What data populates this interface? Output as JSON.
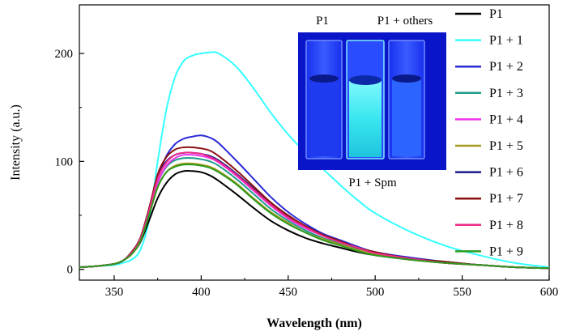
{
  "chart_data": {
    "type": "line",
    "xlabel": "Wavelength (nm)",
    "ylabel": "Intensity (a.u.)",
    "xlim": [
      330,
      600
    ],
    "ylim": [
      -10,
      245
    ],
    "xticks": [
      350,
      400,
      450,
      500,
      550,
      600
    ],
    "yticks": [
      0,
      100,
      200
    ],
    "legend_position": "right",
    "grid": false,
    "x": [
      330,
      340,
      350,
      355,
      360,
      365,
      370,
      375,
      380,
      385,
      390,
      395,
      400,
      405,
      410,
      420,
      430,
      440,
      450,
      460,
      470,
      480,
      490,
      500,
      520,
      540,
      560,
      580,
      600
    ],
    "series": [
      {
        "name": "P1",
        "color": "#000000",
        "values": [
          2,
          3,
          5,
          8,
          14,
          25,
          45,
          66,
          80,
          88,
          91,
          91,
          90,
          87,
          82,
          70,
          57,
          45,
          36,
          29,
          24,
          20,
          16,
          13,
          9,
          6,
          4,
          2,
          1
        ]
      },
      {
        "name": "P1 + 1",
        "color": "#33ffff",
        "values": [
          2,
          3,
          4,
          6,
          9,
          18,
          45,
          100,
          148,
          178,
          193,
          198,
          200,
          201,
          200,
          188,
          168,
          145,
          125,
          108,
          93,
          78,
          64,
          52,
          35,
          22,
          13,
          6,
          2
        ]
      },
      {
        "name": "P1 + 2",
        "color": "#2a2ad6",
        "values": [
          2,
          3,
          5,
          8,
          15,
          28,
          55,
          85,
          105,
          116,
          121,
          123,
          124,
          122,
          117,
          101,
          84,
          67,
          53,
          42,
          33,
          27,
          21,
          16,
          11,
          7,
          4,
          2,
          1
        ]
      },
      {
        "name": "P1 + 3",
        "color": "#1e9a8a",
        "values": [
          2,
          3,
          5,
          8,
          15,
          27,
          52,
          80,
          95,
          101,
          103,
          103,
          102,
          100,
          96,
          84,
          70,
          56,
          45,
          36,
          29,
          24,
          19,
          15,
          10,
          6,
          4,
          2,
          1
        ]
      },
      {
        "name": "P1 + 4",
        "color": "#ee33ee",
        "values": [
          2,
          3,
          5,
          8,
          15,
          27,
          52,
          80,
          96,
          103,
          106,
          106,
          105,
          103,
          99,
          87,
          73,
          59,
          47,
          38,
          31,
          25,
          20,
          15,
          10,
          6,
          4,
          2,
          1
        ]
      },
      {
        "name": "P1 + 5",
        "color": "#a89a1a",
        "values": [
          2,
          3,
          5,
          8,
          14,
          26,
          50,
          76,
          90,
          96,
          98,
          98,
          97,
          95,
          91,
          80,
          66,
          53,
          43,
          34,
          28,
          23,
          18,
          14,
          9,
          6,
          4,
          2,
          1
        ]
      },
      {
        "name": "P1 + 6",
        "color": "#1a1a8a",
        "values": [
          2,
          3,
          5,
          8,
          16,
          29,
          56,
          86,
          100,
          106,
          108,
          108,
          107,
          105,
          101,
          89,
          75,
          61,
          49,
          40,
          32,
          26,
          20,
          16,
          10,
          7,
          4,
          2,
          1
        ]
      },
      {
        "name": "P1 + 7",
        "color": "#8a1010",
        "values": [
          2,
          3,
          5,
          8,
          16,
          29,
          56,
          88,
          104,
          111,
          113,
          113,
          112,
          110,
          105,
          92,
          77,
          62,
          50,
          40,
          32,
          26,
          20,
          16,
          10,
          7,
          4,
          2,
          1
        ]
      },
      {
        "name": "P1 + 8",
        "color": "#ee2a88",
        "values": [
          2,
          3,
          5,
          8,
          15,
          28,
          54,
          84,
          99,
          106,
          108,
          108,
          107,
          104,
          100,
          88,
          74,
          60,
          48,
          39,
          31,
          25,
          20,
          15,
          10,
          6,
          4,
          2,
          1
        ]
      },
      {
        "name": "P1 + 9",
        "color": "#2e9a1e",
        "values": [
          2,
          3,
          5,
          8,
          14,
          26,
          50,
          76,
          90,
          95,
          97,
          97,
          96,
          94,
          90,
          79,
          65,
          52,
          42,
          34,
          27,
          22,
          17,
          13,
          9,
          6,
          4,
          2,
          1
        ]
      }
    ]
  },
  "inset": {
    "label_left": "P1",
    "label_right": "P1 + others",
    "label_bottom": "P1 + Spm",
    "background_color": "#0a14c8",
    "glow_color": "#55f0f5"
  }
}
